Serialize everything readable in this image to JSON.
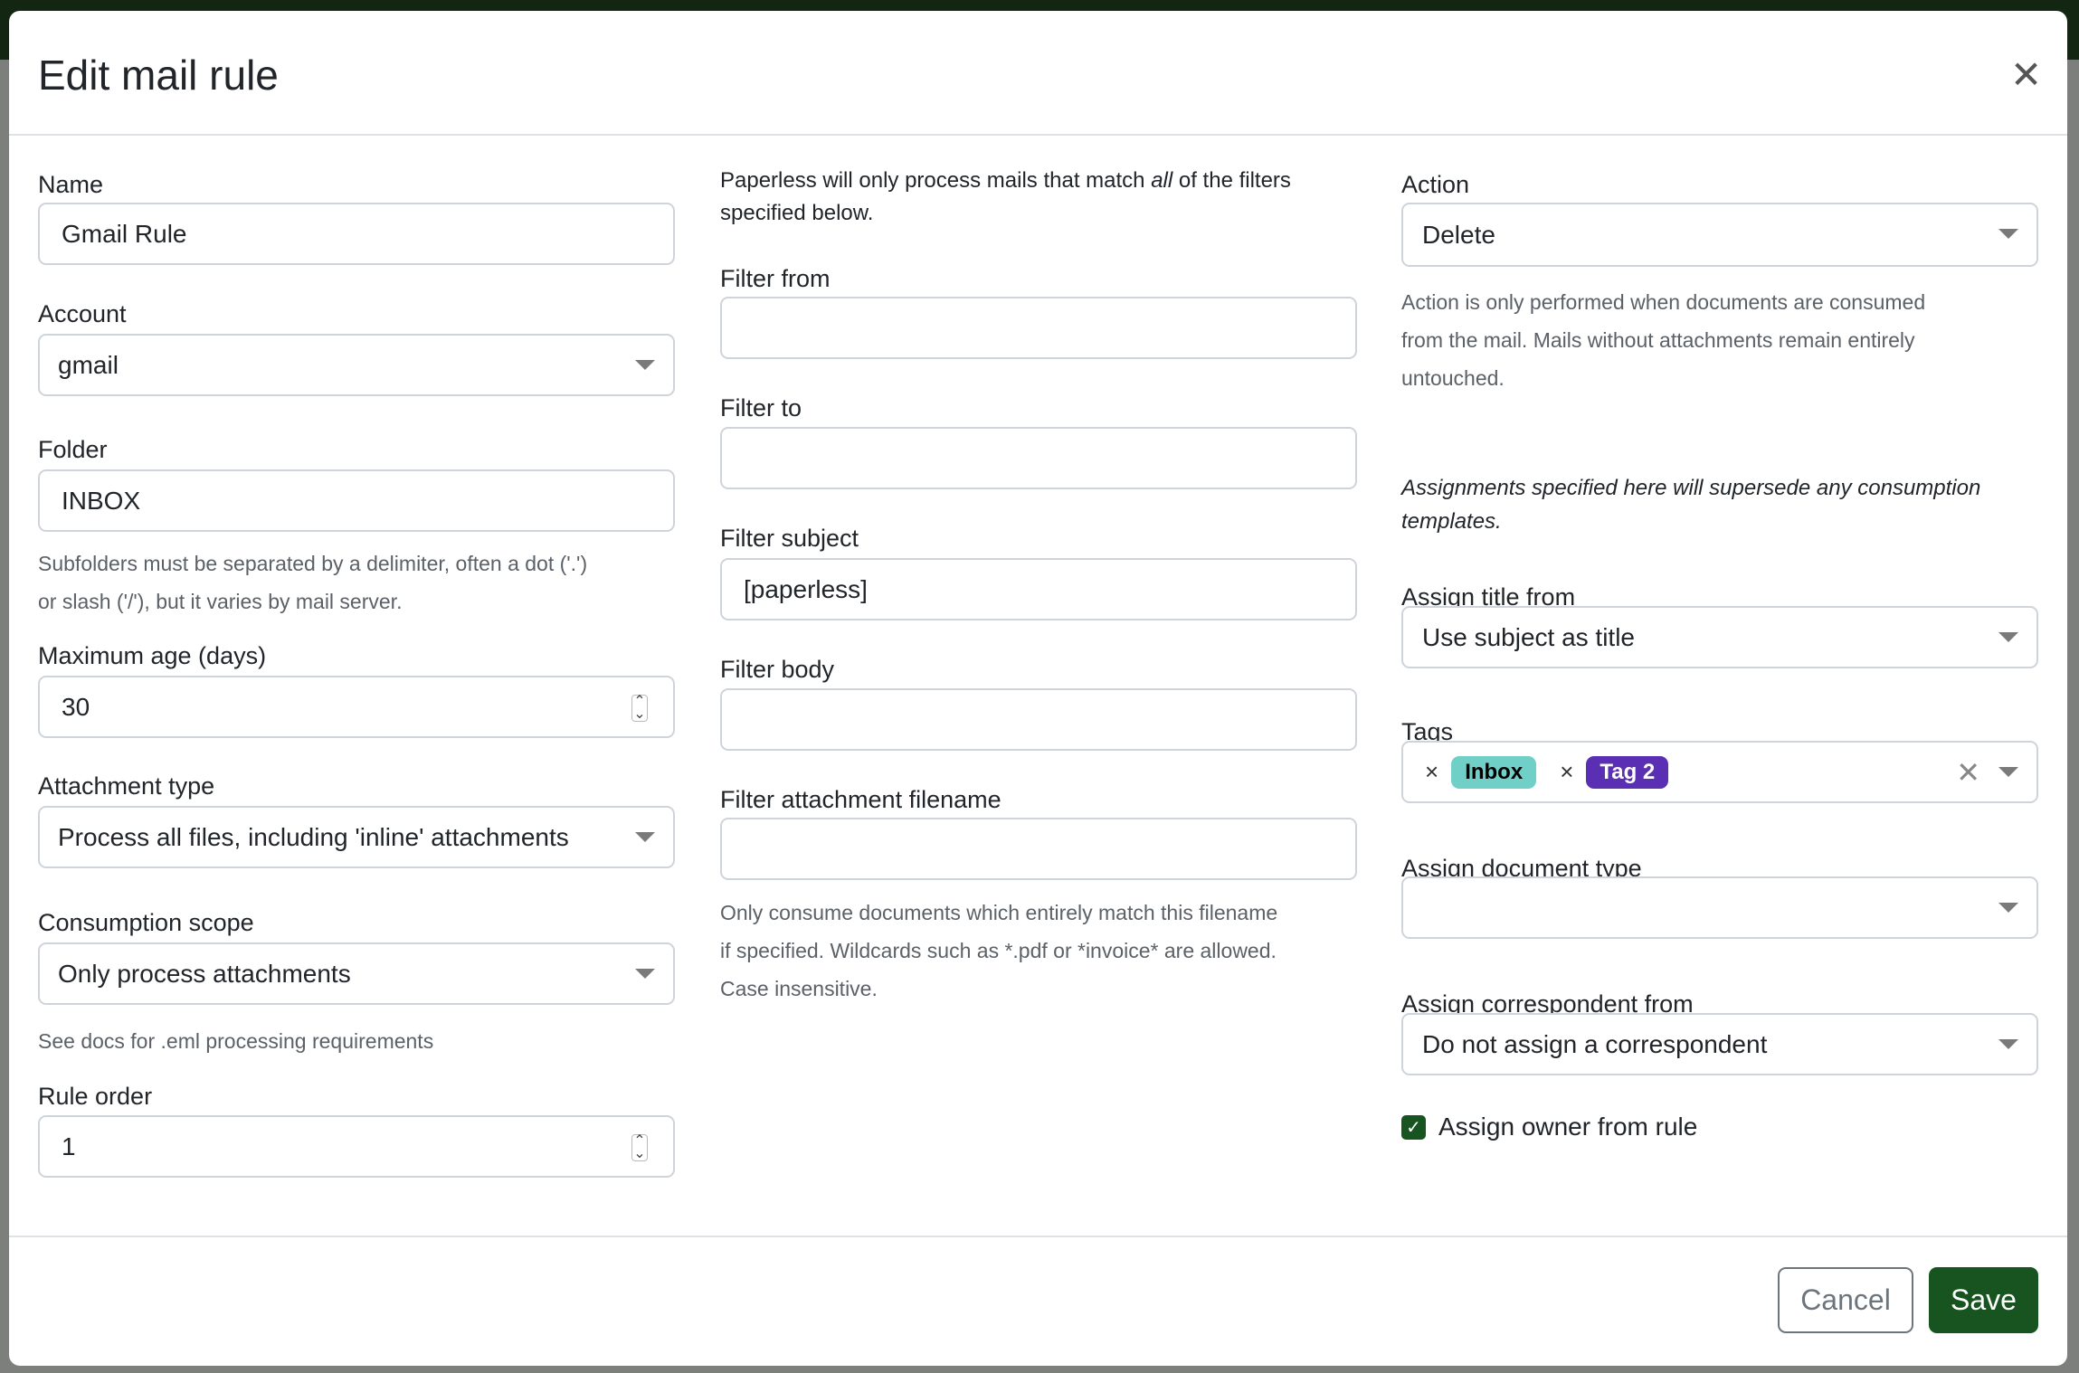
{
  "modal": {
    "title": "Edit mail rule"
  },
  "left": {
    "name_label": "Name",
    "name_value": "Gmail Rule",
    "account_label": "Account",
    "account_value": "gmail",
    "folder_label": "Folder",
    "folder_value": "INBOX",
    "folder_help_1": "Subfolders must be separated by a delimiter, often a dot ('.')",
    "folder_help_2": "or slash ('/'), but it varies by mail server.",
    "max_age_label": "Maximum age (days)",
    "max_age_value": "30",
    "attachment_type_label": "Attachment type",
    "attachment_type_value": "Process all files, including 'inline' attachments",
    "scope_label": "Consumption scope",
    "scope_value": "Only process attachments",
    "scope_help": "See docs for .eml processing requirements",
    "order_label": "Rule order",
    "order_value": "1"
  },
  "middle": {
    "intro_1a": "Paperless will only process mails that match ",
    "intro_1b": "all",
    "intro_1c": " of the filters",
    "intro_2": "specified below.",
    "from_label": "Filter from",
    "from_value": "",
    "to_label": "Filter to",
    "to_value": "",
    "subject_label": "Filter subject",
    "subject_value": "[paperless]",
    "body_label": "Filter body",
    "body_value": "",
    "filename_label": "Filter attachment filename",
    "filename_value": "",
    "filename_help_1": "Only consume documents which entirely match this filename",
    "filename_help_2": "if specified. Wildcards such as *.pdf or *invoice* are allowed.",
    "filename_help_3": "Case insensitive."
  },
  "right": {
    "action_label": "Action",
    "action_value": "Delete",
    "action_help_1": "Action is only performed when documents are consumed",
    "action_help_2": "from the mail. Mails without attachments remain entirely",
    "action_help_3": "untouched.",
    "assign_note_1": "Assignments specified here will supersede any consumption",
    "assign_note_2": "templates.",
    "title_label": "Assign title from",
    "title_value": "Use subject as title",
    "tags_label": "Tags",
    "tags": [
      {
        "label": "Inbox",
        "bg": "#70cfc6",
        "fg": "#000000"
      },
      {
        "label": "Tag 2",
        "bg": "#5a2fb3",
        "fg": "#ffffff"
      }
    ],
    "doctype_label": "Assign document type",
    "doctype_value": "",
    "corr_label": "Assign correspondent from",
    "corr_value": "Do not assign a correspondent",
    "owner_label": "Assign owner from rule",
    "owner_checked": true
  },
  "footer": {
    "cancel": "Cancel",
    "save": "Save"
  },
  "colors": {
    "primary": "#17541f"
  }
}
